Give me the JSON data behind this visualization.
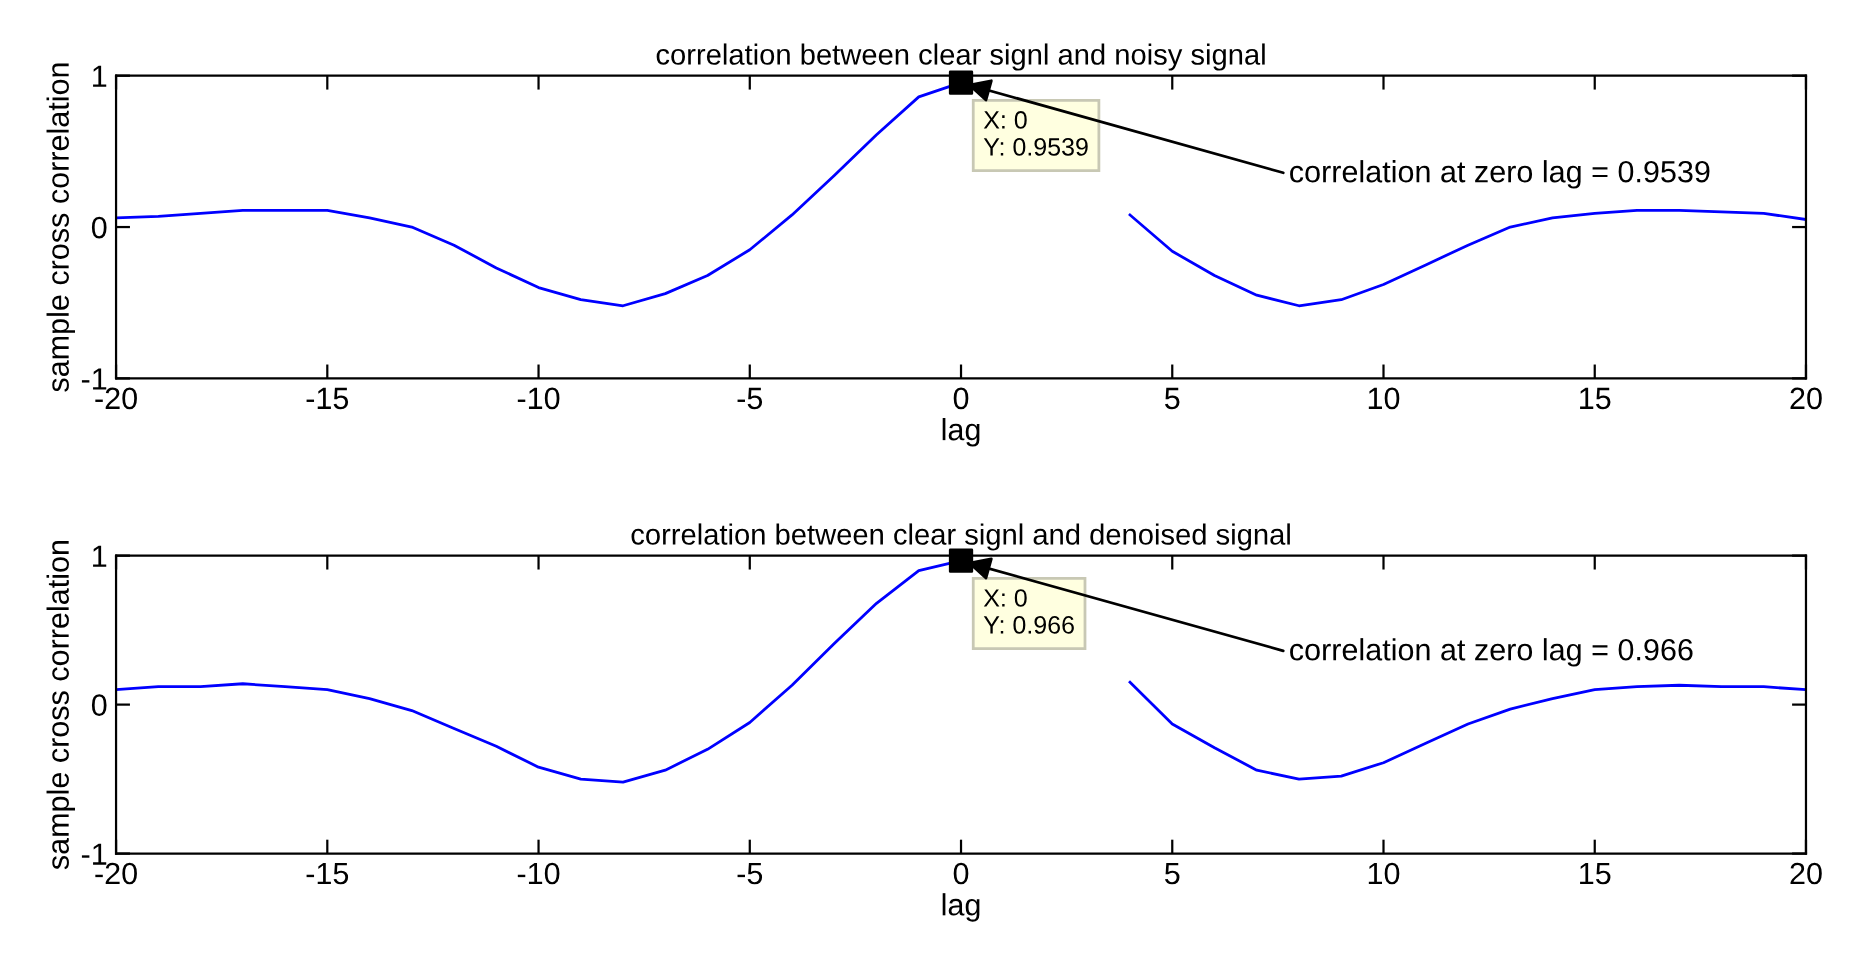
{
  "chart_data": [
    {
      "type": "line",
      "title": "correlation between clear signl and noisy signal",
      "xlabel": "lag",
      "ylabel": "sample cross correlation",
      "x": [
        -20,
        -19,
        -18,
        -17,
        -16,
        -15,
        -14,
        -13,
        -12,
        -11,
        -10,
        -9,
        -8,
        -7,
        -6,
        -5,
        -4,
        -3,
        -2,
        -1,
        0,
        1,
        2,
        3,
        4,
        5,
        6,
        7,
        8,
        9,
        10,
        11,
        12,
        13,
        14,
        15,
        16,
        17,
        18,
        19,
        20
      ],
      "series": [
        {
          "color": "#0000ff",
          "marker": "none",
          "values": [
            0.06,
            0.07,
            0.09,
            0.11,
            0.11,
            0.11,
            0.06,
            0.0,
            -0.12,
            -0.27,
            -0.4,
            -0.48,
            -0.52,
            -0.44,
            -0.32,
            -0.15,
            0.08,
            0.34,
            0.61,
            0.86,
            0.9539,
            null,
            null,
            null,
            0.08,
            -0.16,
            -0.32,
            -0.45,
            -0.52,
            -0.48,
            -0.38,
            -0.25,
            -0.12,
            0.0,
            0.06,
            0.09,
            0.11,
            0.11,
            0.1,
            0.09,
            0.05
          ]
        },
        {
          "type": "scatter",
          "color": "#000000",
          "marker": "square",
          "x": [
            0
          ],
          "values": [
            0.9539
          ]
        }
      ],
      "xlim": [
        -20,
        20
      ],
      "ylim": [
        -1,
        1
      ],
      "xticks": [
        -20,
        -15,
        -10,
        -5,
        0,
        5,
        10,
        15,
        20
      ],
      "yticks": [
        -1,
        0,
        1
      ],
      "annotations": [
        "X: 0\nY: 0.9539",
        {
          "text": "correlation at zero lag = 0.9539",
          "x": 0,
          "y": 0.9539
        }
      ]
    },
    {
      "type": "line",
      "title": "correlation between clear signl and denoised signal",
      "xlabel": "lag",
      "ylabel": "sample cross correlation",
      "x": [
        -20,
        -19,
        -18,
        -17,
        -16,
        -15,
        -14,
        -13,
        -12,
        -11,
        -10,
        -9,
        -8,
        -7,
        -6,
        -5,
        -4,
        -3,
        -2,
        -1,
        0,
        1,
        2,
        3,
        4,
        5,
        6,
        7,
        8,
        9,
        10,
        11,
        12,
        13,
        14,
        15,
        16,
        17,
        18,
        19,
        20
      ],
      "series": [
        {
          "color": "#0000ff",
          "marker": "none",
          "values": [
            0.1,
            0.12,
            0.12,
            0.14,
            0.12,
            0.1,
            0.04,
            -0.04,
            -0.16,
            -0.28,
            -0.42,
            -0.5,
            -0.52,
            -0.44,
            -0.3,
            -0.12,
            0.13,
            0.41,
            0.68,
            0.9,
            0.966,
            null,
            null,
            null,
            0.15,
            -0.13,
            -0.29,
            -0.44,
            -0.5,
            -0.48,
            -0.39,
            -0.26,
            -0.13,
            -0.03,
            0.04,
            0.1,
            0.12,
            0.13,
            0.12,
            0.12,
            0.1
          ]
        },
        {
          "type": "scatter",
          "color": "#000000",
          "marker": "square",
          "x": [
            0
          ],
          "values": [
            0.966
          ]
        }
      ],
      "xlim": [
        -20,
        20
      ],
      "ylim": [
        -1,
        1
      ],
      "xticks": [
        -20,
        -15,
        -10,
        -5,
        0,
        5,
        10,
        15,
        20
      ],
      "yticks": [
        -1,
        0,
        1
      ],
      "annotations": [
        "X: 0\nY: 0.966",
        {
          "text": "correlation at zero lag = 0.966",
          "x": 0,
          "y": 0.966
        }
      ]
    }
  ]
}
